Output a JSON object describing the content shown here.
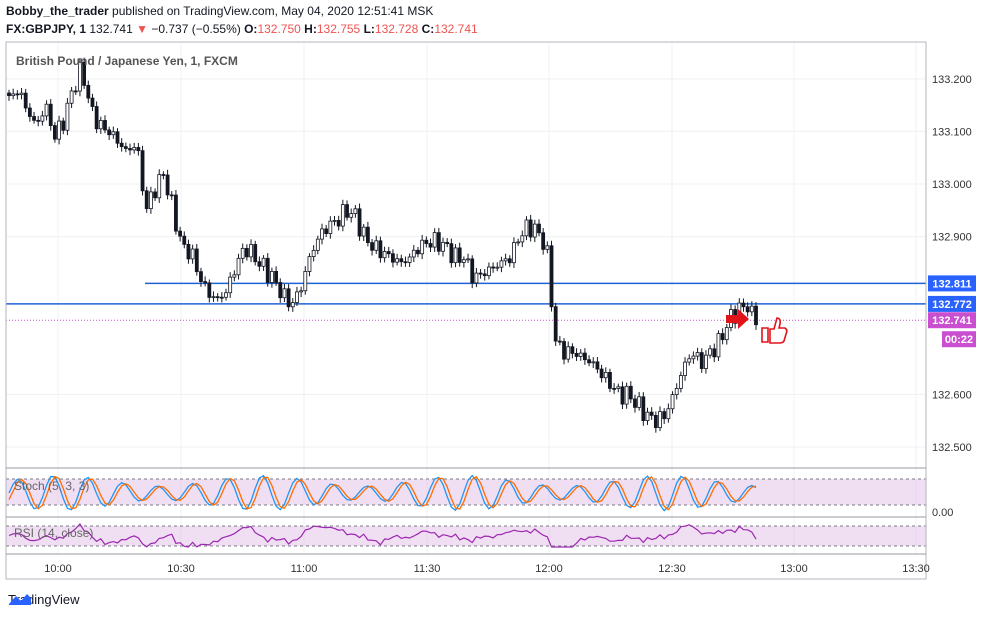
{
  "header": {
    "author": "Bobby_the_trader",
    "published_text": "published on TradingView.com, May 04, 2020 12:51:41 MSK",
    "symbol": "FX:GBPJPY, 1",
    "last": "132.741",
    "change_arrow": "▼",
    "change": "−0.737 (−0.55%)",
    "o_label": "O:",
    "o_value": "132.750",
    "h_label": "H:",
    "h_value": "132.755",
    "l_label": "L:",
    "l_value": "132.728",
    "c_label": "C:",
    "c_value": "132.741"
  },
  "footer": {
    "brand": "TradingView",
    "logo_icon": "tradingview-logo-icon"
  },
  "chart_data": {
    "type": "candlestick",
    "title": "British Pound / Japanese Yen, 1, FXCM",
    "price_axis": {
      "ylim": [
        132.46,
        133.27
      ],
      "ticks": [
        "133.200",
        "133.100",
        "133.000",
        "132.900",
        "132.600",
        "132.500"
      ]
    },
    "time_axis": {
      "ticks": [
        "10:00",
        "10:30",
        "11:00",
        "11:30",
        "12:00",
        "12:30",
        "13:00",
        "13:30"
      ]
    },
    "grid": true,
    "price_labels": [
      {
        "text": "132.811",
        "value": 132.811,
        "color": "#2962ff"
      },
      {
        "text": "132.772",
        "value": 132.772,
        "color": "#2962ff"
      },
      {
        "text": "132.741",
        "value": 132.741,
        "color": "#c94fd0"
      }
    ],
    "countdown": {
      "text": "00:22",
      "color": "#c94fd0"
    },
    "horizontal_lines": [
      {
        "value": 132.811,
        "color": "#1e63d6"
      },
      {
        "value": 132.772,
        "color": "#1e63d6"
      }
    ],
    "ohlc_path": [
      133.16,
      133.18,
      133.14,
      133.11,
      133.15,
      133.09,
      133.12,
      133.18,
      133.22,
      133.14,
      133.11,
      133.1,
      133.08,
      133.06,
      133.08,
      132.95,
      132.99,
      133.02,
      132.95,
      132.88,
      132.87,
      132.82,
      132.79,
      132.78,
      132.8,
      132.85,
      132.88,
      132.86,
      132.84,
      132.82,
      132.79,
      132.77,
      132.8,
      132.86,
      132.9,
      132.92,
      132.93,
      132.95,
      132.94,
      132.9,
      132.88,
      132.87,
      132.86,
      132.85,
      132.86,
      132.88,
      132.89,
      132.89,
      132.88,
      132.86,
      132.86,
      132.82,
      132.83,
      132.84,
      132.85,
      132.86,
      132.9,
      132.92,
      132.91,
      132.88,
      132.7,
      132.68,
      132.68,
      132.67,
      132.66,
      132.64,
      132.62,
      132.6,
      132.6,
      132.58,
      132.56,
      132.55,
      132.56,
      132.6,
      132.65,
      132.68,
      132.66,
      132.68,
      132.7,
      132.74,
      132.76,
      132.77,
      132.741
    ],
    "stoch": {
      "label": "Stoch (5, 3, 3)",
      "ticks": [
        "0.00"
      ],
      "bands": [
        80,
        20
      ]
    },
    "rsi": {
      "label": "RSI (14, close)",
      "bands": [
        70,
        30
      ]
    }
  }
}
